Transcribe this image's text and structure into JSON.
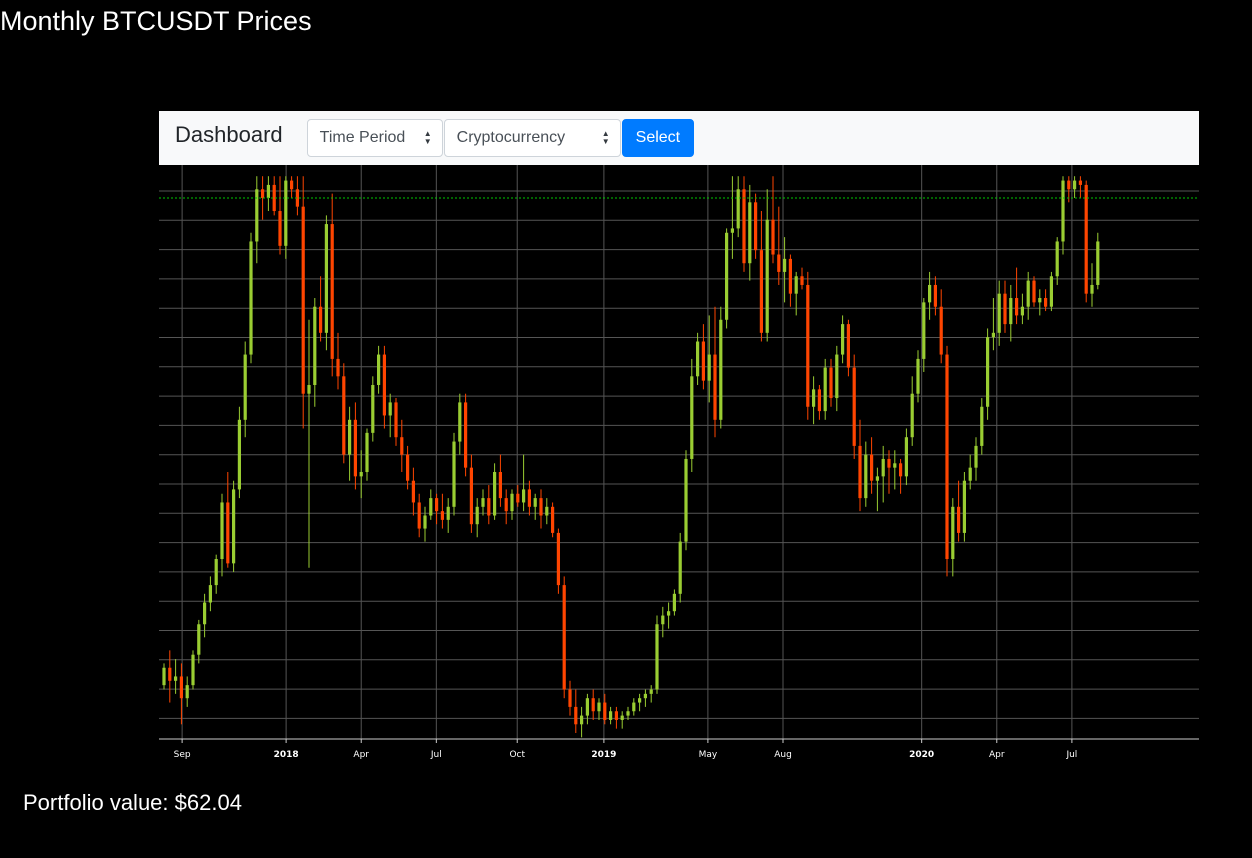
{
  "page": {
    "title": "Monthly BTCUSDT Prices",
    "portfolio_label": "Portfolio value: $62.04"
  },
  "navbar": {
    "brand": "Dashboard",
    "time_period": {
      "selected": "Time Period"
    },
    "cryptocurrency": {
      "selected": "Cryptocurrency"
    },
    "select_label": "Select",
    "button_color": "#007bff"
  },
  "chart_data": {
    "type": "candlestick",
    "symbol": "BTCUSDT",
    "grid": true,
    "colors": {
      "up": "#9acd32",
      "down": "#ff4500",
      "grid": "#555555",
      "reference_line": "#00c800"
    },
    "reference_line": {
      "style": "dashed",
      "y": 16.3
    },
    "ylim": [
      4,
      16.8
    ],
    "x_ticks": [
      {
        "label": "Sep",
        "x": 4,
        "major": false
      },
      {
        "label": "2018",
        "x": 22,
        "major": true
      },
      {
        "label": "Apr",
        "x": 35,
        "major": false
      },
      {
        "label": "Jul",
        "x": 48,
        "major": false
      },
      {
        "label": "Oct",
        "x": 62,
        "major": false
      },
      {
        "label": "2019",
        "x": 77,
        "major": true
      },
      {
        "label": "May",
        "x": 95,
        "major": false
      },
      {
        "label": "Aug",
        "x": 108,
        "major": false
      },
      {
        "label": "2020",
        "x": 132,
        "major": true
      },
      {
        "label": "Apr",
        "x": 145,
        "major": false
      },
      {
        "label": "Jul",
        "x": 158,
        "major": false
      }
    ],
    "xlim": [
      0,
      180
    ],
    "ohlc": [
      [
        5.1,
        5.6,
        5.0,
        5.5
      ],
      [
        5.5,
        5.9,
        4.7,
        5.2
      ],
      [
        5.2,
        5.7,
        4.9,
        5.3
      ],
      [
        5.3,
        5.6,
        4.2,
        4.8
      ],
      [
        4.8,
        5.3,
        4.6,
        5.1
      ],
      [
        5.1,
        5.9,
        5.0,
        5.8
      ],
      [
        5.8,
        6.6,
        5.6,
        6.5
      ],
      [
        6.5,
        7.2,
        6.2,
        7.0
      ],
      [
        7.0,
        7.6,
        6.8,
        7.4
      ],
      [
        7.4,
        8.1,
        7.2,
        8.0
      ],
      [
        8.0,
        9.5,
        7.6,
        9.3
      ],
      [
        9.3,
        10.0,
        7.8,
        7.9
      ],
      [
        7.9,
        9.8,
        7.7,
        9.6
      ],
      [
        9.6,
        11.5,
        9.4,
        11.2
      ],
      [
        11.2,
        13.0,
        10.8,
        12.7
      ],
      [
        12.7,
        15.5,
        12.5,
        15.3
      ],
      [
        15.3,
        16.8,
        14.8,
        16.5
      ],
      [
        16.5,
        16.8,
        15.8,
        16.3
      ],
      [
        16.3,
        16.8,
        16.0,
        16.6
      ],
      [
        16.6,
        16.8,
        15.9,
        16.0
      ],
      [
        16.0,
        16.8,
        15.0,
        15.2
      ],
      [
        15.2,
        16.8,
        14.9,
        16.7
      ],
      [
        16.7,
        16.8,
        16.3,
        16.5
      ],
      [
        16.5,
        16.8,
        15.9,
        16.1
      ],
      [
        16.1,
        16.8,
        11.0,
        11.8
      ],
      [
        11.8,
        13.5,
        7.8,
        12.0
      ],
      [
        12.0,
        14.0,
        11.5,
        13.8
      ],
      [
        13.8,
        14.5,
        13.0,
        13.2
      ],
      [
        13.2,
        15.9,
        12.8,
        15.7
      ],
      [
        15.7,
        16.4,
        12.2,
        12.6
      ],
      [
        12.6,
        13.2,
        11.9,
        12.2
      ],
      [
        12.2,
        12.5,
        10.2,
        10.4
      ],
      [
        10.4,
        11.5,
        9.8,
        11.2
      ],
      [
        11.2,
        11.6,
        9.6,
        9.9
      ],
      [
        9.9,
        10.5,
        9.4,
        10.0
      ],
      [
        10.0,
        11.0,
        9.8,
        10.9
      ],
      [
        10.9,
        12.2,
        10.7,
        12.0
      ],
      [
        12.0,
        12.9,
        11.8,
        12.7
      ],
      [
        12.7,
        12.9,
        11.0,
        11.3
      ],
      [
        11.3,
        11.8,
        10.8,
        11.6
      ],
      [
        11.6,
        11.7,
        10.6,
        10.8
      ],
      [
        10.8,
        11.2,
        10.0,
        10.4
      ],
      [
        10.4,
        10.6,
        9.6,
        9.8
      ],
      [
        9.8,
        10.1,
        9.0,
        9.3
      ],
      [
        9.3,
        9.5,
        8.5,
        8.7
      ],
      [
        8.7,
        9.2,
        8.4,
        9.0
      ],
      [
        9.0,
        9.6,
        8.9,
        9.4
      ],
      [
        9.4,
        9.5,
        8.8,
        9.1
      ],
      [
        9.1,
        9.5,
        8.7,
        8.9
      ],
      [
        8.9,
        9.4,
        8.6,
        9.2
      ],
      [
        9.2,
        10.9,
        9.0,
        10.7
      ],
      [
        10.7,
        11.8,
        10.4,
        11.6
      ],
      [
        11.6,
        11.8,
        9.9,
        10.1
      ],
      [
        10.1,
        10.4,
        8.6,
        8.8
      ],
      [
        8.8,
        9.4,
        8.5,
        9.2
      ],
      [
        9.2,
        9.6,
        9.0,
        9.4
      ],
      [
        9.4,
        9.7,
        8.8,
        9.0
      ],
      [
        9.0,
        10.2,
        8.9,
        10.0
      ],
      [
        10.0,
        10.4,
        9.2,
        9.4
      ],
      [
        9.4,
        9.6,
        8.8,
        9.1
      ],
      [
        9.1,
        9.6,
        8.9,
        9.5
      ],
      [
        9.5,
        9.7,
        9.2,
        9.3
      ],
      [
        9.3,
        10.4,
        9.1,
        9.6
      ],
      [
        9.6,
        9.8,
        9.0,
        9.2
      ],
      [
        9.2,
        9.5,
        8.9,
        9.4
      ],
      [
        9.4,
        9.6,
        8.7,
        9.0
      ],
      [
        9.0,
        9.4,
        8.8,
        9.2
      ],
      [
        9.2,
        9.3,
        8.5,
        8.6
      ],
      [
        8.6,
        8.7,
        7.2,
        7.4
      ],
      [
        7.4,
        7.6,
        4.8,
        5.0
      ],
      [
        5.0,
        5.2,
        4.4,
        4.6
      ],
      [
        4.6,
        5.0,
        4.0,
        4.2
      ],
      [
        4.2,
        4.6,
        3.9,
        4.4
      ],
      [
        4.4,
        4.9,
        4.2,
        4.8
      ],
      [
        4.8,
        5.0,
        4.3,
        4.5
      ],
      [
        4.5,
        4.8,
        4.3,
        4.7
      ],
      [
        4.7,
        4.9,
        4.2,
        4.3
      ],
      [
        4.3,
        4.6,
        4.2,
        4.5
      ],
      [
        4.5,
        4.6,
        4.1,
        4.3
      ],
      [
        4.3,
        4.5,
        4.1,
        4.4
      ],
      [
        4.4,
        4.6,
        4.3,
        4.5
      ],
      [
        4.5,
        4.8,
        4.4,
        4.7
      ],
      [
        4.7,
        4.9,
        4.5,
        4.8
      ],
      [
        4.8,
        5.0,
        4.6,
        4.9
      ],
      [
        4.9,
        5.1,
        4.7,
        5.0
      ],
      [
        5.0,
        6.7,
        4.9,
        6.5
      ],
      [
        6.5,
        6.9,
        6.2,
        6.7
      ],
      [
        6.7,
        7.0,
        6.4,
        6.8
      ],
      [
        6.8,
        7.3,
        6.7,
        7.2
      ],
      [
        7.2,
        8.6,
        7.0,
        8.4
      ],
      [
        8.4,
        10.5,
        8.2,
        10.3
      ],
      [
        10.3,
        12.6,
        10.0,
        12.2
      ],
      [
        12.2,
        13.2,
        12.0,
        13.0
      ],
      [
        13.0,
        13.4,
        11.9,
        12.1
      ],
      [
        12.1,
        13.6,
        11.6,
        12.7
      ],
      [
        12.7,
        13.8,
        10.8,
        11.2
      ],
      [
        11.2,
        13.8,
        11.0,
        13.5
      ],
      [
        13.5,
        15.6,
        13.3,
        15.5
      ],
      [
        15.5,
        16.8,
        14.9,
        15.6
      ],
      [
        15.6,
        16.8,
        15.4,
        16.5
      ],
      [
        16.5,
        16.8,
        14.6,
        14.8
      ],
      [
        14.8,
        16.6,
        14.4,
        16.2
      ],
      [
        16.2,
        16.4,
        14.9,
        15.1
      ],
      [
        15.1,
        16.0,
        13.0,
        13.2
      ],
      [
        13.2,
        16.5,
        13.0,
        15.8
      ],
      [
        15.8,
        16.8,
        14.8,
        15.0
      ],
      [
        15.0,
        16.1,
        14.3,
        14.6
      ],
      [
        14.6,
        15.4,
        13.9,
        14.9
      ],
      [
        14.9,
        15.0,
        13.8,
        14.1
      ],
      [
        14.1,
        14.6,
        13.6,
        14.5
      ],
      [
        14.5,
        14.7,
        14.2,
        14.3
      ],
      [
        14.3,
        14.6,
        11.2,
        11.5
      ],
      [
        11.5,
        12.2,
        11.1,
        11.9
      ],
      [
        11.9,
        12.0,
        11.2,
        11.4
      ],
      [
        11.4,
        12.6,
        11.2,
        12.4
      ],
      [
        12.4,
        12.6,
        11.5,
        11.7
      ],
      [
        11.7,
        12.9,
        11.4,
        12.7
      ],
      [
        12.7,
        13.6,
        12.5,
        13.4
      ],
      [
        13.4,
        13.5,
        12.2,
        12.4
      ],
      [
        12.4,
        12.7,
        10.3,
        10.6
      ],
      [
        10.6,
        11.2,
        9.1,
        9.4
      ],
      [
        9.4,
        10.7,
        9.2,
        10.4
      ],
      [
        10.4,
        10.8,
        9.5,
        9.8
      ],
      [
        9.8,
        10.1,
        9.1,
        9.9
      ],
      [
        9.9,
        10.6,
        9.3,
        10.3
      ],
      [
        10.3,
        10.5,
        9.5,
        10.1
      ],
      [
        10.1,
        10.5,
        9.6,
        10.2
      ],
      [
        10.2,
        10.3,
        9.5,
        9.9
      ],
      [
        9.9,
        11.0,
        9.7,
        10.8
      ],
      [
        10.8,
        12.2,
        10.6,
        11.8
      ],
      [
        11.8,
        12.8,
        11.6,
        12.6
      ],
      [
        12.6,
        14.0,
        12.3,
        13.9
      ],
      [
        13.9,
        14.6,
        13.5,
        14.3
      ],
      [
        14.3,
        14.5,
        13.6,
        13.8
      ],
      [
        13.8,
        14.2,
        12.5,
        12.7
      ],
      [
        12.7,
        12.9,
        7.6,
        8.0
      ],
      [
        8.0,
        9.4,
        7.6,
        9.2
      ],
      [
        9.2,
        9.8,
        8.4,
        8.6
      ],
      [
        8.6,
        10.0,
        8.4,
        9.8
      ],
      [
        9.8,
        10.4,
        9.6,
        10.1
      ],
      [
        10.1,
        10.8,
        9.8,
        10.6
      ],
      [
        10.6,
        11.7,
        10.4,
        11.5
      ],
      [
        11.5,
        13.3,
        11.2,
        13.1
      ],
      [
        13.1,
        14.0,
        12.8,
        13.2
      ],
      [
        13.2,
        14.4,
        12.9,
        14.1
      ],
      [
        14.1,
        14.4,
        13.2,
        13.4
      ],
      [
        13.4,
        14.3,
        13.0,
        14.0
      ],
      [
        14.0,
        14.7,
        13.4,
        13.6
      ],
      [
        13.6,
        14.1,
        13.4,
        13.8
      ],
      [
        13.8,
        14.6,
        13.5,
        14.4
      ],
      [
        14.4,
        14.5,
        13.8,
        13.9
      ],
      [
        13.9,
        14.2,
        13.6,
        14.0
      ],
      [
        14.0,
        14.2,
        13.7,
        13.8
      ],
      [
        13.8,
        14.6,
        13.7,
        14.5
      ],
      [
        14.5,
        15.4,
        14.3,
        15.3
      ],
      [
        15.3,
        16.8,
        15.0,
        16.7
      ],
      [
        16.7,
        16.8,
        16.2,
        16.5
      ],
      [
        16.5,
        16.8,
        16.3,
        16.7
      ],
      [
        16.7,
        16.8,
        16.3,
        16.6
      ],
      [
        16.6,
        16.7,
        13.9,
        14.1
      ],
      [
        14.1,
        14.8,
        13.8,
        14.3
      ],
      [
        14.3,
        15.5,
        14.2,
        15.3
      ]
    ]
  }
}
